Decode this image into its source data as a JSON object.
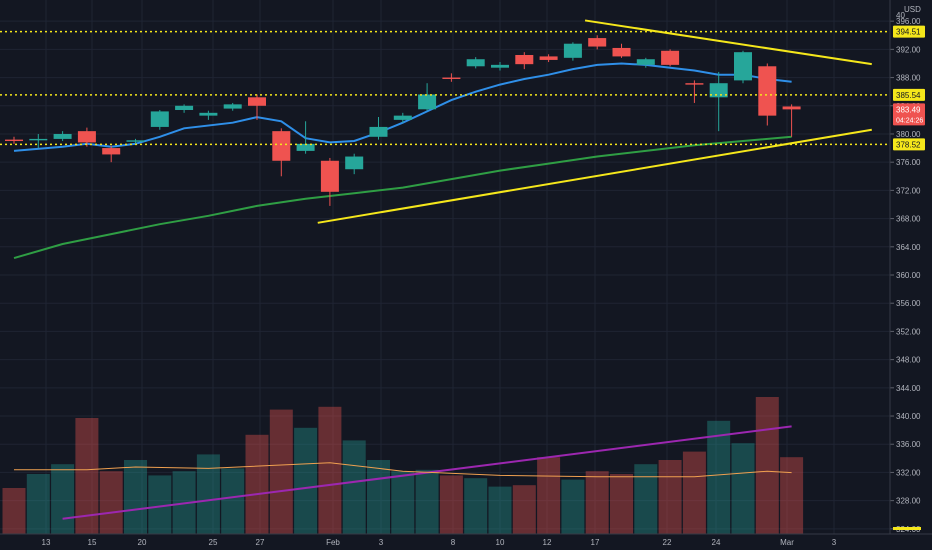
{
  "chart_data": {
    "type": "candlestick",
    "currency": "USD",
    "price_axis": {
      "min": 321,
      "max": 399,
      "ticks": [
        396,
        392,
        388,
        384,
        380,
        376,
        372,
        368,
        364,
        360,
        356,
        352,
        348,
        344,
        340,
        336,
        332,
        328,
        324
      ]
    },
    "top_tick_label": "40",
    "x_labels": [
      "13",
      "15",
      "20",
      "25",
      "27",
      "Feb",
      "3",
      "8",
      "10",
      "12",
      "17",
      "22",
      "24",
      "Mar",
      "3"
    ],
    "price_lines": [
      {
        "value": 394.51,
        "label": "394.51",
        "color": "#f5e71b"
      },
      {
        "value": 385.54,
        "label": "385.54",
        "color": "#f5e71b"
      },
      {
        "value": 378.52,
        "label": "378.52",
        "color": "#f5e71b"
      }
    ],
    "last_price": {
      "value": 383.49,
      "label": "383.49",
      "countdown": "04:24:26",
      "color": "#ef5350"
    },
    "candles": [
      {
        "o": 379.2,
        "h": 379.6,
        "l": 378.6,
        "c": 379.0
      },
      {
        "o": 379.1,
        "h": 380.0,
        "l": 378.0,
        "c": 379.3
      },
      {
        "o": 379.3,
        "h": 380.4,
        "l": 379.0,
        "c": 380.0
      },
      {
        "o": 380.4,
        "h": 380.9,
        "l": 378.2,
        "c": 378.8
      },
      {
        "o": 378.0,
        "h": 378.3,
        "l": 376.0,
        "c": 377.1
      },
      {
        "o": 378.9,
        "h": 379.3,
        "l": 378.5,
        "c": 379.1
      },
      {
        "o": 381.0,
        "h": 383.4,
        "l": 380.6,
        "c": 383.2
      },
      {
        "o": 383.4,
        "h": 384.2,
        "l": 383.0,
        "c": 384.0
      },
      {
        "o": 382.6,
        "h": 383.3,
        "l": 382.0,
        "c": 383.0
      },
      {
        "o": 383.6,
        "h": 384.4,
        "l": 383.3,
        "c": 384.2
      },
      {
        "o": 385.2,
        "h": 385.6,
        "l": 382.0,
        "c": 384.0
      },
      {
        "o": 380.4,
        "h": 380.8,
        "l": 374.0,
        "c": 376.2
      },
      {
        "o": 377.6,
        "h": 381.8,
        "l": 377.2,
        "c": 378.6
      },
      {
        "o": 376.2,
        "h": 376.6,
        "l": 369.8,
        "c": 371.8
      },
      {
        "o": 375.0,
        "h": 377.2,
        "l": 374.3,
        "c": 376.8
      },
      {
        "o": 379.6,
        "h": 382.4,
        "l": 379.2,
        "c": 381.0
      },
      {
        "o": 382.0,
        "h": 383.0,
        "l": 381.6,
        "c": 382.6
      },
      {
        "o": 383.5,
        "h": 387.2,
        "l": 383.3,
        "c": 385.6
      },
      {
        "o": 388.0,
        "h": 388.6,
        "l": 387.4,
        "c": 387.8
      },
      {
        "o": 389.6,
        "h": 390.9,
        "l": 389.3,
        "c": 390.6
      },
      {
        "o": 389.4,
        "h": 390.2,
        "l": 389.0,
        "c": 389.8
      },
      {
        "o": 391.2,
        "h": 391.6,
        "l": 389.2,
        "c": 389.9
      },
      {
        "o": 391.0,
        "h": 391.3,
        "l": 390.2,
        "c": 390.5
      },
      {
        "o": 390.8,
        "h": 393.0,
        "l": 390.4,
        "c": 392.8
      },
      {
        "o": 393.6,
        "h": 394.0,
        "l": 392.0,
        "c": 392.4
      },
      {
        "o": 392.2,
        "h": 392.8,
        "l": 390.8,
        "c": 391.0
      },
      {
        "o": 389.8,
        "h": 390.8,
        "l": 389.4,
        "c": 390.6
      },
      {
        "o": 391.8,
        "h": 392.0,
        "l": 389.6,
        "c": 389.8
      },
      {
        "o": 387.2,
        "h": 387.6,
        "l": 384.4,
        "c": 387.0
      },
      {
        "o": 385.2,
        "h": 388.8,
        "l": 380.4,
        "c": 387.2
      },
      {
        "o": 387.6,
        "h": 391.8,
        "l": 387.2,
        "c": 391.6
      },
      {
        "o": 389.6,
        "h": 390.0,
        "l": 381.2,
        "c": 382.6
      },
      {
        "o": 383.9,
        "h": 384.2,
        "l": 379.6,
        "c": 383.49
      }
    ],
    "volume_overlay": [
      0.3,
      0.4,
      0.47,
      0.8,
      0.42,
      0.5,
      0.39,
      0.42,
      0.54,
      0.44,
      0.68,
      0.86,
      0.73,
      0.88,
      0.64,
      0.5,
      0.42,
      0.43,
      0.39,
      0.37,
      0.31,
      0.32,
      0.52,
      0.36,
      0.42,
      0.4,
      0.47,
      0.5,
      0.56,
      0.78,
      0.62,
      0.95,
      0.52
    ],
    "moving_averages": [
      {
        "name": "short",
        "color": "#2f8fe8",
        "points": [
          [
            0,
            377.6
          ],
          [
            2,
            378.2
          ],
          [
            3,
            378.6
          ],
          [
            4,
            378.2
          ],
          [
            5,
            378.6
          ],
          [
            6,
            379.6
          ],
          [
            7,
            380.8
          ],
          [
            9,
            381.6
          ],
          [
            10,
            382.4
          ],
          [
            11,
            381.8
          ],
          [
            12,
            379.4
          ],
          [
            13,
            378.8
          ],
          [
            14,
            379.0
          ],
          [
            15,
            380.2
          ],
          [
            16,
            381.6
          ],
          [
            17,
            383.2
          ],
          [
            18,
            384.8
          ],
          [
            19,
            386.0
          ],
          [
            20,
            387.0
          ],
          [
            21,
            387.8
          ],
          [
            22,
            388.4
          ],
          [
            23,
            389.2
          ],
          [
            24,
            389.8
          ],
          [
            25,
            390.0
          ],
          [
            26,
            389.8
          ],
          [
            27,
            389.4
          ],
          [
            28,
            389.0
          ],
          [
            29,
            388.4
          ],
          [
            30,
            388.4
          ],
          [
            31,
            387.8
          ],
          [
            32,
            387.4
          ]
        ]
      },
      {
        "name": "long",
        "color": "#2f9e44",
        "points": [
          [
            0,
            362.4
          ],
          [
            2,
            364.4
          ],
          [
            4,
            365.8
          ],
          [
            6,
            367.2
          ],
          [
            8,
            368.4
          ],
          [
            10,
            369.8
          ],
          [
            12,
            370.8
          ],
          [
            14,
            371.6
          ],
          [
            16,
            372.4
          ],
          [
            18,
            373.6
          ],
          [
            20,
            374.8
          ],
          [
            22,
            375.8
          ],
          [
            24,
            376.8
          ],
          [
            26,
            377.6
          ],
          [
            28,
            378.4
          ],
          [
            30,
            379.0
          ],
          [
            32,
            379.6
          ]
        ]
      },
      {
        "name": "volume-long",
        "color": "#9c27b0",
        "points": [
          [
            2,
            0.08
          ],
          [
            32,
            0.74
          ]
        ]
      },
      {
        "name": "volume-short",
        "color": "#f0a050",
        "points": [
          [
            0,
            0.43
          ],
          [
            3,
            0.43
          ],
          [
            5,
            0.45
          ],
          [
            8,
            0.44
          ],
          [
            13,
            0.48
          ],
          [
            16,
            0.42
          ],
          [
            20,
            0.39
          ],
          [
            24,
            0.38
          ],
          [
            28,
            0.38
          ],
          [
            31,
            0.42
          ],
          [
            32,
            0.41
          ]
        ]
      }
    ],
    "trendlines": [
      {
        "color": "#f5e71b",
        "from": [
          23.5,
          396.1
        ],
        "to": [
          35.3,
          389.9
        ]
      },
      {
        "color": "#f5e71b",
        "from": [
          12.5,
          367.4
        ],
        "to": [
          35.3,
          380.6
        ]
      }
    ]
  }
}
